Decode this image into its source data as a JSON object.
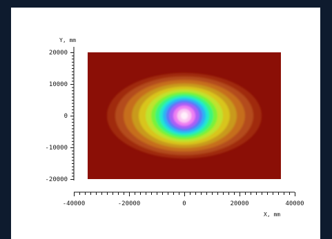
{
  "chart_data": {
    "type": "heatmap",
    "title": "",
    "xlabel": "X, mm",
    "ylabel": "Y, mm",
    "xlim": [
      -40000,
      40000
    ],
    "ylim": [
      -20000,
      20000
    ],
    "data_extent": {
      "x": [
        -35000,
        35000
      ],
      "y": [
        -20000,
        20000
      ]
    },
    "x_ticks": [
      -40000,
      -20000,
      0,
      20000,
      40000
    ],
    "x_tick_labels": [
      "-40000",
      "-20000",
      "0",
      "20000",
      "40000"
    ],
    "y_ticks": [
      20000,
      10000,
      0,
      -10000,
      -20000
    ],
    "y_tick_labels": [
      "20000",
      "10000",
      "0",
      "-10000",
      "-20000"
    ],
    "grid": false,
    "peak": {
      "x": 0,
      "y": 0
    },
    "colorscale": [
      "#8b0f06",
      "#a02a0e",
      "#b44c1a",
      "#c66e1a",
      "#c99a1f",
      "#d8c51d",
      "#bfe32d",
      "#7af237",
      "#3af57d",
      "#22e6d2",
      "#2ab4f4",
      "#5a78f8",
      "#a95ff6",
      "#ee7ff2",
      "#fbc6f2",
      "#fff0fb"
    ],
    "contour_levels": [
      {
        "level": 1,
        "rx": 28000,
        "ry": 13500
      },
      {
        "level": 2,
        "rx": 25000,
        "ry": 12400
      },
      {
        "level": 3,
        "rx": 22000,
        "ry": 11300
      },
      {
        "level": 4,
        "rx": 19000,
        "ry": 10200
      },
      {
        "level": 5,
        "rx": 16500,
        "ry": 9200
      },
      {
        "level": 6,
        "rx": 14000,
        "ry": 8300
      },
      {
        "level": 7,
        "rx": 12000,
        "ry": 7500
      },
      {
        "level": 8,
        "rx": 10500,
        "ry": 6800
      },
      {
        "level": 9,
        "rx": 9000,
        "ry": 6100
      },
      {
        "level": 10,
        "rx": 7800,
        "ry": 5500
      },
      {
        "level": 11,
        "rx": 6600,
        "ry": 4800
      },
      {
        "level": 12,
        "rx": 5400,
        "ry": 4100
      },
      {
        "level": 13,
        "rx": 4000,
        "ry": 3200
      },
      {
        "level": 14,
        "rx": 2600,
        "ry": 2200
      },
      {
        "level": 15,
        "rx": 1300,
        "ry": 1200
      }
    ]
  }
}
